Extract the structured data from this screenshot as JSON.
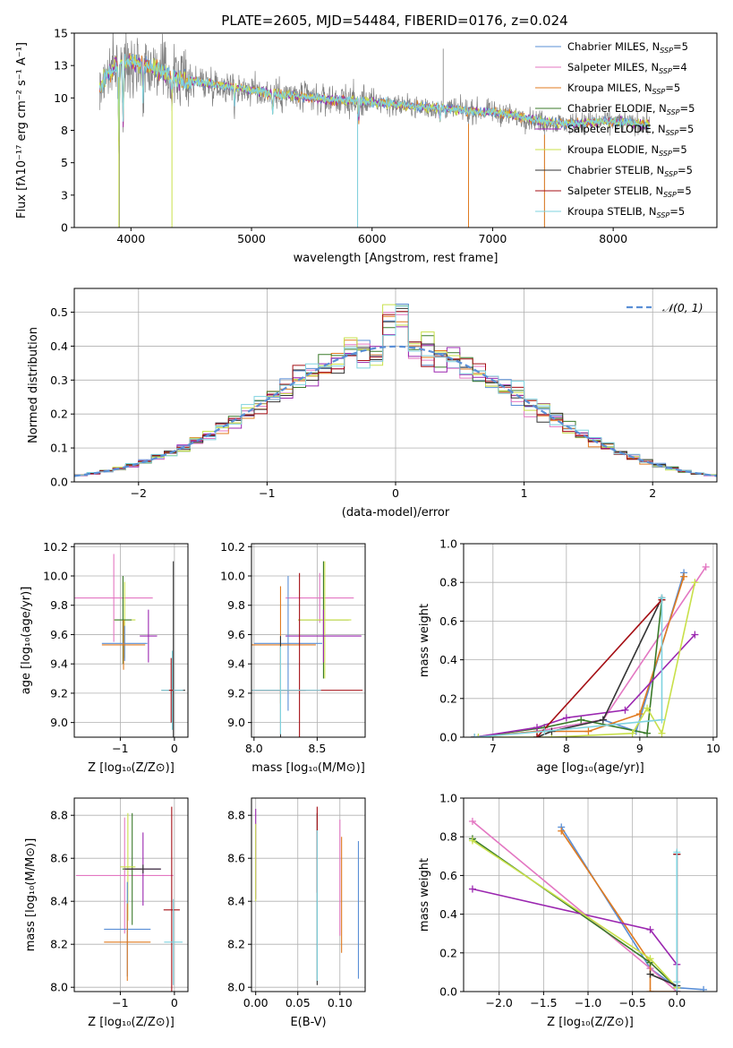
{
  "figure_title": "PLATE=2605, MJD=54484, FIBERID=0176, z=0.024",
  "series_colors": {
    "chabrier_miles": "#5a8fd6",
    "salpeter_miles": "#e377c2",
    "kroupa_miles": "#e07b20",
    "chabrier_elodie": "#3a7a2a",
    "salpeter_elodie": "#9b27b0",
    "kroupa_elodie": "#c8e04a",
    "chabrier_stelib": "#333333",
    "salpeter_stelib": "#a50f15",
    "kroupa_stelib": "#7fd3df",
    "data": "#808080"
  },
  "chart_data": [
    {
      "id": "spectrum",
      "type": "line",
      "title": "PLATE=2605, MJD=54484, FIBERID=0176, z=0.024",
      "xlabel": "wavelength [Angstrom, rest frame]",
      "ylabel": "Flux [fλ10⁻¹⁷ erg cm⁻² s⁻¹ A⁻¹]",
      "xlim": [
        3530,
        8860
      ],
      "ylim": [
        0,
        15
      ],
      "xticks": [
        4000,
        5000,
        6000,
        7000,
        8000
      ],
      "yticks": [
        0.0,
        2.5,
        5.0,
        7.5,
        10.0,
        12.5,
        15.0
      ],
      "grid": false,
      "legend_position": "top-right",
      "legend": [
        {
          "main": "Chabrier MILES, N",
          "sub": "SSP",
          "post": "=5",
          "color": "#5a8fd6"
        },
        {
          "main": "Salpeter MILES, N",
          "sub": "SSP",
          "post": "=4",
          "color": "#e377c2"
        },
        {
          "main": "Kroupa MILES, N",
          "sub": "SSP",
          "post": "=5",
          "color": "#e07b20"
        },
        {
          "main": "Chabrier ELODIE, N",
          "sub": "SSP",
          "post": "=5",
          "color": "#3a7a2a"
        },
        {
          "main": "Salpeter ELODIE, N",
          "sub": "SSP",
          "post": "=5",
          "color": "#9b27b0"
        },
        {
          "main": "Kroupa ELODIE, N",
          "sub": "SSP",
          "post": "=5",
          "color": "#c8e04a"
        },
        {
          "main": "Chabrier STELIB, N",
          "sub": "SSP",
          "post": "=5",
          "color": "#333333"
        },
        {
          "main": "Salpeter STELIB, N",
          "sub": "SSP",
          "post": "=5",
          "color": "#a50f15"
        },
        {
          "main": "Kroupa STELIB, N",
          "sub": "SSP",
          "post": "=5",
          "color": "#7fd3df"
        }
      ],
      "continuum_x": [
        3740,
        3800,
        3900,
        4000,
        4100,
        4200,
        4300,
        4400,
        4600,
        4800,
        5000,
        5200,
        5400,
        5600,
        5800,
        6000,
        6200,
        6400,
        6600,
        6800,
        7000,
        7200,
        7400,
        7600,
        7800,
        8000,
        8200,
        8300
      ],
      "continuum_y": [
        10.5,
        11.8,
        12.6,
        12.8,
        12.6,
        12.2,
        11.8,
        11.5,
        11.2,
        10.9,
        10.6,
        10.3,
        10.1,
        9.9,
        9.8,
        9.7,
        9.5,
        9.3,
        9.2,
        9.0,
        8.9,
        8.6,
        8.2,
        8.0,
        8.1,
        8.2,
        8.0,
        7.9
      ],
      "absorption_features": [
        {
          "x": 3900,
          "depth": 6.5
        },
        {
          "x": 3935,
          "depth": 5.0
        },
        {
          "x": 4100,
          "depth": 2.5
        },
        {
          "x": 4340,
          "depth": 2.0
        },
        {
          "x": 4860,
          "depth": 1.5
        },
        {
          "x": 5175,
          "depth": 1.5
        },
        {
          "x": 5890,
          "depth": 1.5
        },
        {
          "x": 6563,
          "depth": 1.0
        }
      ],
      "data_spikes": [
        {
          "x": 3905,
          "y": 0.0
        },
        {
          "x": 5880,
          "y": 0.0
        },
        {
          "x": 6800,
          "y": 0.0
        },
        {
          "x": 7430,
          "y": 0.0
        },
        {
          "x": 6590,
          "y": 13.8
        }
      ]
    },
    {
      "id": "residuals",
      "type": "histogram",
      "xlabel": "(data-model)/error",
      "ylabel": "Normed distribution",
      "xlim": [
        -2.5,
        2.5
      ],
      "ylim": [
        0,
        0.57
      ],
      "xticks": [
        -2,
        -1,
        0,
        1,
        2
      ],
      "yticks": [
        0.0,
        0.1,
        0.2,
        0.3,
        0.4,
        0.5
      ],
      "grid": true,
      "legend_position": "top-right",
      "legend": [
        {
          "label": "𝒩(0, 1)",
          "color": "#5a8fd6",
          "style": "dashed"
        }
      ],
      "bin_width": 0.1
    },
    {
      "id": "age-vs-Z",
      "type": "errorbar",
      "xlabel": "Z [log₁₀(Z/Z⊙)]",
      "ylabel": "age  [log₁₀(age/yr)]",
      "xlim": [
        -1.85,
        0.25
      ],
      "ylim": [
        8.9,
        10.22
      ],
      "xticks": [
        -1,
        0
      ],
      "yticks": [
        9.0,
        9.2,
        9.4,
        9.6,
        9.8,
        10.0,
        10.2
      ],
      "grid": true,
      "points": [
        {
          "series": "Salpeter MILES",
          "x": -1.12,
          "xerr": 0.72,
          "y": 9.85,
          "yerr": 0.3
        },
        {
          "series": "Kroupa ELODIE",
          "x": -0.92,
          "xerr": 0.2,
          "y": 9.7,
          "yerr": 0.26
        },
        {
          "series": "Chabrier ELODIE",
          "x": -0.95,
          "xerr": 0.16,
          "y": 9.7,
          "yerr": 0.3
        },
        {
          "series": "Salpeter ELODIE",
          "x": -0.48,
          "xerr": 0.16,
          "y": 9.59,
          "yerr": 0.18
        },
        {
          "series": "Chabrier MILES",
          "x": -0.92,
          "xerr": 0.42,
          "y": 9.54,
          "yerr": 0.12
        },
        {
          "series": "Kroupa MILES",
          "x": -0.94,
          "xerr": 0.4,
          "y": 9.53,
          "yerr": 0.17
        },
        {
          "series": "Chabrier STELIB",
          "x": -0.02,
          "xerr": 0.22,
          "y": 9.22,
          "yerr": 0.88
        },
        {
          "series": "Kroupa STELIB",
          "x": -0.04,
          "xerr": 0.2,
          "y": 9.22,
          "yerr": 0.27
        },
        {
          "series": "Salpeter STELIB",
          "x": -0.06,
          "xerr": 0.04,
          "y": 9.22,
          "yerr": 0.22
        }
      ]
    },
    {
      "id": "age-vs-mass",
      "type": "errorbar",
      "xlabel": "mass [log₁₀(M/M⊙)]",
      "ylabel": "",
      "xlim": [
        7.98,
        8.88
      ],
      "ylim": [
        8.9,
        10.22
      ],
      "xticks": [
        8.0,
        8.5
      ],
      "yticks": [
        9.0,
        9.2,
        9.4,
        9.6,
        9.8,
        10.0,
        10.2
      ],
      "grid": true,
      "points": [
        {
          "series": "Salpeter MILES",
          "x": 8.52,
          "xerr": 0.27,
          "y": 9.85,
          "yerr": 0.17
        },
        {
          "series": "Chabrier ELODIE",
          "x": 8.55,
          "xerr": 0.2,
          "y": 9.7,
          "yerr": 0.4
        },
        {
          "series": "Kroupa ELODIE",
          "x": 8.56,
          "xerr": 0.21,
          "y": 9.7,
          "yerr": 0.4
        },
        {
          "series": "Salpeter ELODIE",
          "x": 8.55,
          "xerr": 0.3,
          "y": 9.59,
          "yerr": 0.18
        },
        {
          "series": "Chabrier MILES",
          "x": 8.27,
          "xerr": 0.27,
          "y": 9.54,
          "yerr": 0.46
        },
        {
          "series": "Kroupa MILES",
          "x": 8.21,
          "xerr": 0.28,
          "y": 9.53,
          "yerr": 0.4
        },
        {
          "series": "Chabrier STELIB",
          "x": 8.21,
          "xerr": 0.2,
          "y": 9.22,
          "yerr": 0.37
        },
        {
          "series": "Salpeter STELIB",
          "x": 8.36,
          "xerr": 0.5,
          "y": 9.22,
          "yerr": 0.8
        },
        {
          "series": "Kroupa STELIB",
          "x": 8.21,
          "xerr": 0.32,
          "y": 9.22,
          "yerr": 0.3
        }
      ]
    },
    {
      "id": "mass-weight-vs-age",
      "type": "line",
      "xlabel": "age  [log₁₀(age/yr)]",
      "ylabel": "mass weight",
      "xlim": [
        6.6,
        10.05
      ],
      "ylim": [
        0,
        1
      ],
      "xticks": [
        7,
        8,
        9,
        10
      ],
      "yticks": [
        0.0,
        0.2,
        0.4,
        0.6,
        0.8,
        1.0
      ],
      "grid": true,
      "series": [
        {
          "name": "Chabrier MILES",
          "x": [
            6.75,
            7.6,
            8.5,
            8.95,
            9.6
          ],
          "y": [
            0.0,
            0.03,
            0.09,
            0.03,
            0.85
          ]
        },
        {
          "name": "Salpeter MILES",
          "x": [
            6.75,
            7.6,
            8.5,
            9.9
          ],
          "y": [
            0.0,
            0.03,
            0.09,
            0.88
          ]
        },
        {
          "name": "Kroupa MILES",
          "x": [
            6.75,
            7.6,
            8.3,
            9.0,
            9.6
          ],
          "y": [
            0.0,
            0.03,
            0.03,
            0.12,
            0.83
          ]
        },
        {
          "name": "Chabrier ELODIE",
          "x": [
            6.75,
            7.7,
            8.2,
            9.1,
            9.3
          ],
          "y": [
            0.0,
            0.05,
            0.09,
            0.02,
            0.71
          ]
        },
        {
          "name": "Salpeter ELODIE",
          "x": [
            6.75,
            7.6,
            8.0,
            8.8,
            9.75
          ],
          "y": [
            0.0,
            0.05,
            0.1,
            0.14,
            0.53
          ]
        },
        {
          "name": "Kroupa ELODIE",
          "x": [
            6.8,
            7.8,
            8.9,
            9.1,
            9.3,
            9.75
          ],
          "y": [
            0.0,
            0.0,
            0.02,
            0.15,
            0.02,
            0.8
          ]
        },
        {
          "name": "Chabrier STELIB",
          "x": [
            7.6,
            7.8,
            8.5,
            9.3
          ],
          "y": [
            0.0,
            0.03,
            0.09,
            0.72
          ]
        },
        {
          "name": "Salpeter STELIB",
          "x": [
            7.6,
            9.3
          ],
          "y": [
            0.0,
            0.71
          ]
        },
        {
          "name": "Kroupa STELIB",
          "x": [
            6.75,
            7.7,
            9.3,
            9.3
          ],
          "y": [
            0.0,
            0.03,
            0.09,
            0.72
          ]
        }
      ]
    },
    {
      "id": "mass-vs-Z",
      "type": "errorbar",
      "xlabel": "Z [log₁₀(Z/Z⊙)]",
      "ylabel": "mass [log₁₀(M/M⊙)]",
      "xlim": [
        -1.85,
        0.25
      ],
      "ylim": [
        7.98,
        8.88
      ],
      "xticks": [
        -1,
        0
      ],
      "yticks": [
        8.0,
        8.2,
        8.4,
        8.6,
        8.8
      ],
      "grid": true,
      "points": [
        {
          "series": "Salpeter MILES",
          "x": -0.92,
          "xerr": 0.9,
          "y": 8.52,
          "yerr": 0.27
        },
        {
          "series": "Chabrier ELODIE",
          "x": -0.78,
          "xerr": 0.18,
          "y": 8.55,
          "yerr": 0.26
        },
        {
          "series": "Kroupa ELODIE",
          "x": -0.86,
          "xerr": 0.14,
          "y": 8.56,
          "yerr": 0.25
        },
        {
          "series": "Salpeter ELODIE",
          "x": -0.58,
          "xerr": 0.33,
          "y": 8.55,
          "yerr": 0.17
        },
        {
          "series": "Chabrier STELIB",
          "x": -0.58,
          "xerr": 0.33,
          "y": 8.55,
          "yerr": 0.02
        },
        {
          "series": "Chabrier MILES",
          "x": -0.87,
          "xerr": 0.43,
          "y": 8.27,
          "yerr": 0.22
        },
        {
          "series": "Kroupa MILES",
          "x": -0.87,
          "xerr": 0.43,
          "y": 8.21,
          "yerr": 0.18
        },
        {
          "series": "Salpeter STELIB",
          "x": -0.05,
          "xerr": 0.15,
          "y": 8.36,
          "yerr": 0.48
        },
        {
          "series": "Kroupa STELIB",
          "x": -0.02,
          "xerr": 0.17,
          "y": 8.21,
          "yerr": 0.2
        }
      ]
    },
    {
      "id": "mass-vs-ebv",
      "type": "errorbar",
      "xlabel": "E(B-V)",
      "ylabel": "",
      "xlim": [
        -0.005,
        0.13
      ],
      "ylim": [
        7.98,
        8.88
      ],
      "xticks": [
        0.0,
        0.05,
        0.1
      ],
      "yticks": [
        8.0,
        8.2,
        8.4,
        8.6,
        8.8
      ],
      "grid": true,
      "points": [
        {
          "series": "Salpeter ELODIE",
          "x": 0.0,
          "xerr": 0.0,
          "y": 8.62,
          "yerr": 0.21
        },
        {
          "series": "Kroupa ELODIE",
          "x": 0.0,
          "xerr": 0.0,
          "y": 8.58,
          "yerr": 0.18
        },
        {
          "series": "Chabrier STELIB",
          "x": 0.073,
          "xerr": 0.0,
          "y": 8.41,
          "yerr": 0.4
        },
        {
          "series": "Salpeter STELIB",
          "x": 0.073,
          "xerr": 0.0,
          "y": 8.64,
          "yerr": 0.2
        },
        {
          "series": "Kroupa STELIB",
          "x": 0.073,
          "xerr": 0.0,
          "y": 8.38,
          "yerr": 0.35
        },
        {
          "series": "Salpeter MILES",
          "x": 0.1,
          "xerr": 0.0,
          "y": 8.51,
          "yerr": 0.27
        },
        {
          "series": "Kroupa MILES",
          "x": 0.102,
          "xerr": 0.0,
          "y": 8.43,
          "yerr": 0.27
        },
        {
          "series": "Chabrier MILES",
          "x": 0.122,
          "xerr": 0.0,
          "y": 8.36,
          "yerr": 0.32
        }
      ]
    },
    {
      "id": "mass-weight-vs-Z",
      "type": "line",
      "xlabel": "Z [log₁₀(Z/Z⊙)]",
      "ylabel": "mass weight",
      "xlim": [
        -2.4,
        0.45
      ],
      "ylim": [
        0,
        1
      ],
      "xticks": [
        -2.0,
        -1.5,
        -1.0,
        -0.5,
        0.0
      ],
      "yticks": [
        0.0,
        0.2,
        0.4,
        0.6,
        0.8,
        1.0
      ],
      "grid": true,
      "series": [
        {
          "name": "Chabrier MILES",
          "x": [
            -1.3,
            -0.3,
            0.0,
            0.3
          ],
          "y": [
            0.85,
            0.12,
            0.02,
            0.01
          ]
        },
        {
          "name": "Salpeter MILES",
          "x": [
            -2.3,
            -0.3,
            0.0
          ],
          "y": [
            0.88,
            0.12,
            0.0
          ]
        },
        {
          "name": "Kroupa MILES",
          "x": [
            -1.3,
            -0.3,
            -0.3,
            0.0
          ],
          "y": [
            0.83,
            0.15,
            0.0,
            0.0
          ]
        },
        {
          "name": "Chabrier ELODIE",
          "x": [
            -2.3,
            -0.3,
            0.0
          ],
          "y": [
            0.79,
            0.15,
            0.02
          ]
        },
        {
          "name": "Salpeter ELODIE",
          "x": [
            -2.3,
            -0.3,
            0.0,
            0.0
          ],
          "y": [
            0.53,
            0.32,
            0.14,
            0.0
          ]
        },
        {
          "name": "Kroupa ELODIE",
          "x": [
            -2.3,
            -0.3,
            0.0
          ],
          "y": [
            0.78,
            0.17,
            0.02
          ]
        },
        {
          "name": "Chabrier STELIB",
          "x": [
            -0.3,
            0.0,
            0.0
          ],
          "y": [
            0.09,
            0.03,
            0.71
          ]
        },
        {
          "name": "Salpeter STELIB",
          "x": [
            0.0,
            0.0
          ],
          "y": [
            0.0,
            0.71
          ]
        },
        {
          "name": "Kroupa STELIB",
          "x": [
            0.0,
            0.0,
            0.0
          ],
          "y": [
            0.72,
            0.05,
            0.0
          ]
        }
      ]
    }
  ]
}
